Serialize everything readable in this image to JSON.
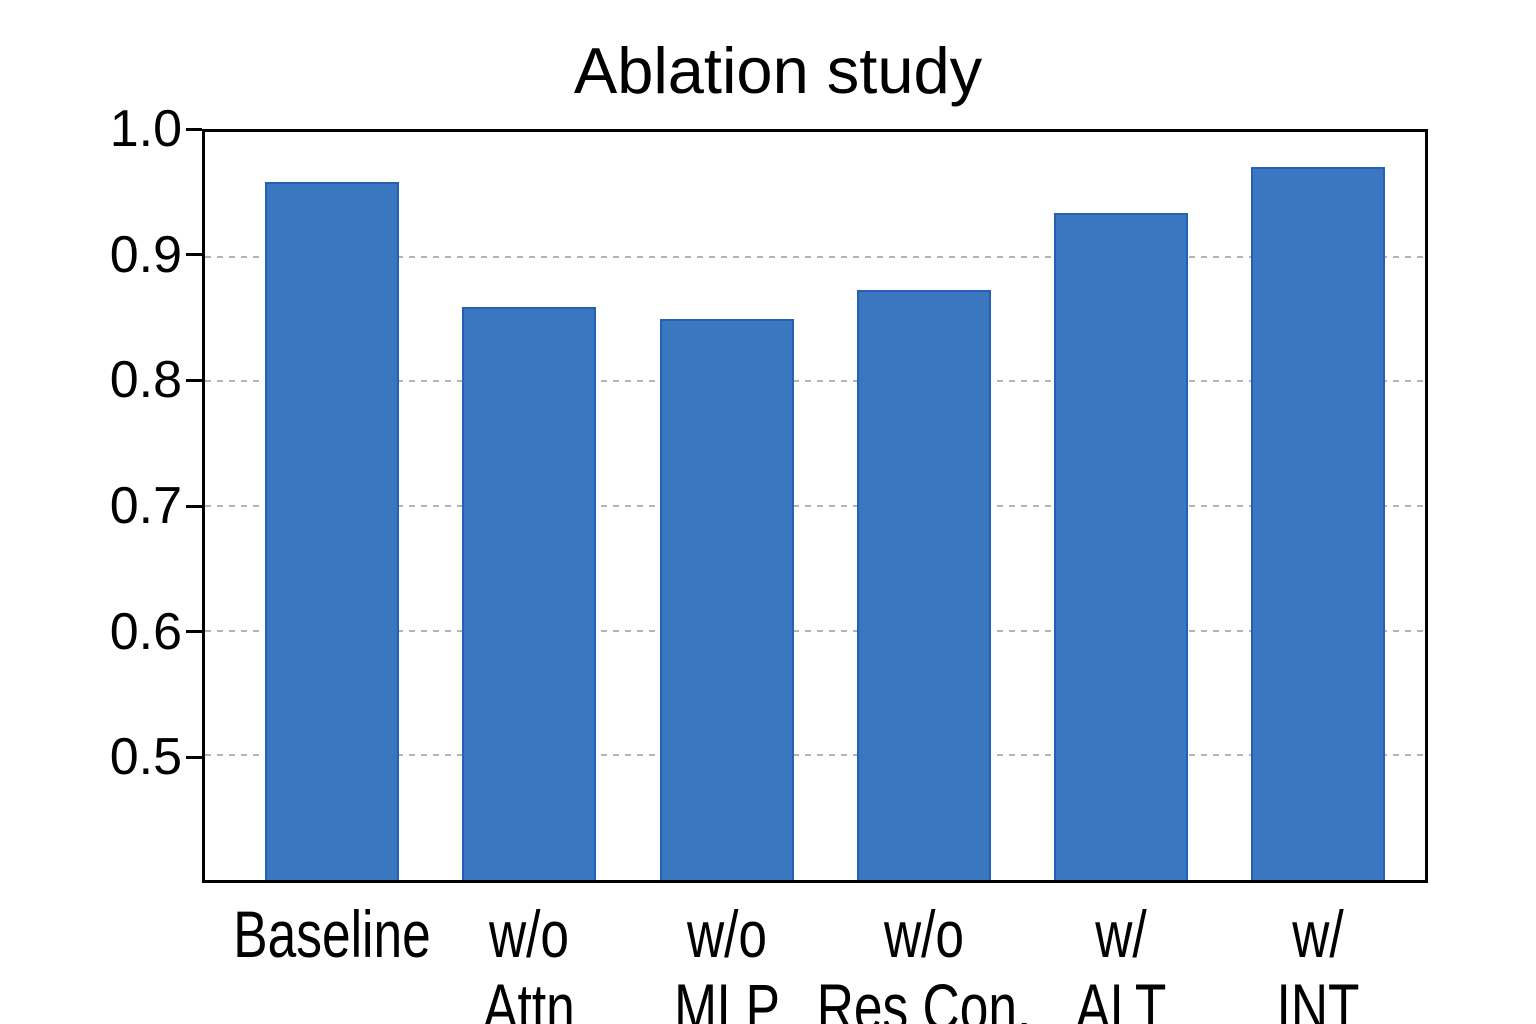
{
  "chart_data": {
    "type": "bar",
    "title": "Ablation study",
    "categories": [
      "Baseline",
      "w/o\nAttn",
      "w/o\nMLP",
      "w/o\nRes Con.",
      "w/\nALT",
      "w/\nINT"
    ],
    "values": [
      0.96,
      0.86,
      0.85,
      0.873,
      0.935,
      0.972
    ],
    "xlabel": "",
    "ylabel": "",
    "ylim": [
      0.4,
      1.0
    ],
    "yticks": [
      0.5,
      0.6,
      0.7,
      0.8,
      0.9,
      1.0
    ],
    "ytick_labels": [
      "0.5",
      "0.6",
      "0.7",
      "0.8",
      "0.9",
      "1.0"
    ],
    "grid": {
      "axis": "y",
      "style": "dashed",
      "behind_bars": true
    },
    "legend": "none",
    "colors": {
      "bar_fill": "#3b76c1",
      "bar_edge": "#2560b2",
      "grid": "#b5b5b5",
      "axes": "#000000",
      "text": "#000000",
      "background": "#ffffff"
    }
  }
}
